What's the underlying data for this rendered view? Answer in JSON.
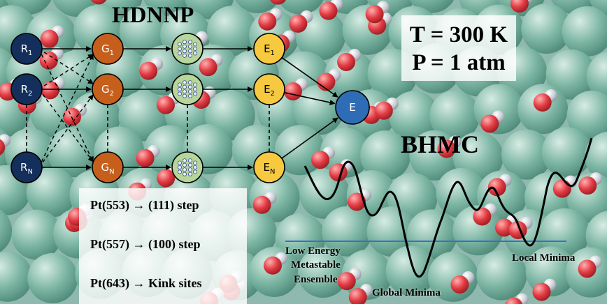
{
  "colors": {
    "input_node": "#142f5c",
    "descriptor_node": "#c65f1c",
    "nn_node": "#b6d69a",
    "energy_node": "#f6c940",
    "total_node": "#2e6db6",
    "water_sphere": "#6eaa98",
    "oxygen_sphere": "#e43a42",
    "hydrogen_sphere": "#c9cfd6",
    "pes_line": "#000000",
    "threshold_line": "#3a6ec9"
  },
  "hdnnp": {
    "title": "HDNNP",
    "inputs": [
      {
        "base": "R",
        "sub": "1"
      },
      {
        "base": "R",
        "sub": "2"
      },
      {
        "base": "R",
        "sub": "N"
      }
    ],
    "descriptors": [
      {
        "base": "G",
        "sub": "1"
      },
      {
        "base": "G",
        "sub": "2"
      },
      {
        "base": "G",
        "sub": "N"
      }
    ],
    "energies": [
      {
        "base": "E",
        "sub": "1"
      },
      {
        "base": "E",
        "sub": "2"
      },
      {
        "base": "E",
        "sub": "N"
      }
    ],
    "total": "E",
    "nn_icon": "neural-network-icon"
  },
  "conditions": {
    "temperature": "T = 300 K",
    "pressure": "P = 1 atm"
  },
  "surfaces": {
    "lines": [
      {
        "surface": "Pt(553)",
        "arrow": "→",
        "site": "(111) step"
      },
      {
        "surface": "Pt(557)",
        "arrow": "→",
        "site": "(100) step"
      },
      {
        "surface": "Pt(643)",
        "arrow": "→",
        "site": "Kink sites"
      }
    ]
  },
  "bhmc": {
    "title": "BHMC",
    "labels": {
      "low_energy_1": "Low Energy",
      "low_energy_2": "Metastable",
      "low_energy_3": "Ensemble",
      "global": "Global Minima",
      "local": "Local Minima"
    }
  }
}
